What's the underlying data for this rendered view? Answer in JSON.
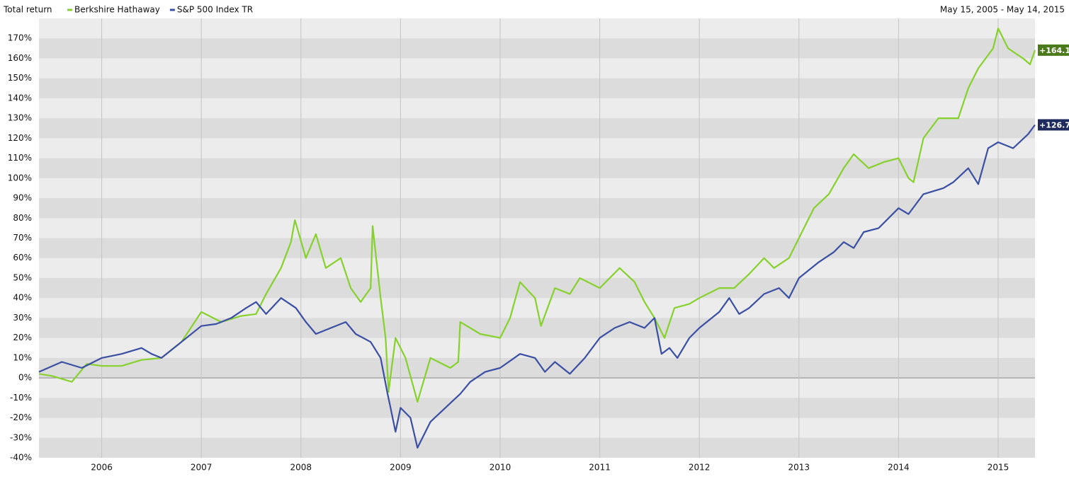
{
  "chart_data": {
    "type": "line",
    "title": "Total return",
    "subtitle": "May 15, 2005 - May 14, 2015",
    "xlim": [
      2005.37,
      2015.37
    ],
    "xticks": [
      2006,
      2007,
      2008,
      2009,
      2010,
      2011,
      2012,
      2013,
      2014,
      2015
    ],
    "ylim": [
      -40,
      180
    ],
    "yticks": [
      {
        "value": -40,
        "label": "-40%"
      },
      {
        "value": -30,
        "label": "-30%"
      },
      {
        "value": -20,
        "label": "-20%"
      },
      {
        "value": -10,
        "label": "-10%"
      },
      {
        "value": 0,
        "label": "0%"
      },
      {
        "value": 10,
        "label": "10%"
      },
      {
        "value": 20,
        "label": "20%"
      },
      {
        "value": 30,
        "label": "30%"
      },
      {
        "value": 40,
        "label": "40%"
      },
      {
        "value": 50,
        "label": "50%"
      },
      {
        "value": 60,
        "label": "60%"
      },
      {
        "value": 70,
        "label": "70%"
      },
      {
        "value": 80,
        "label": "80%"
      },
      {
        "value": 90,
        "label": "90%"
      },
      {
        "value": 100,
        "label": "100%"
      },
      {
        "value": 110,
        "label": "110%"
      },
      {
        "value": 120,
        "label": "120%"
      },
      {
        "value": 130,
        "label": "130%"
      },
      {
        "value": 140,
        "label": "140%"
      },
      {
        "value": 150,
        "label": "150%"
      },
      {
        "value": 160,
        "label": "160%"
      },
      {
        "value": 170,
        "label": "170%"
      }
    ],
    "grid": true,
    "series": [
      {
        "name": "Berkshire Hathaway",
        "color": "#86d12c",
        "label_color": "#4b7a1c",
        "end_label": "+164.1",
        "x": [
          2005.37,
          2005.5,
          2005.7,
          2005.85,
          2006.0,
          2006.2,
          2006.4,
          2006.6,
          2006.8,
          2007.0,
          2007.2,
          2007.4,
          2007.55,
          2007.65,
          2007.8,
          2007.9,
          2007.94,
          2008.05,
          2008.15,
          2008.25,
          2008.4,
          2008.5,
          2008.6,
          2008.7,
          2008.72,
          2008.8,
          2008.85,
          2008.88,
          2008.95,
          2009.05,
          2009.17,
          2009.3,
          2009.5,
          2009.58,
          2009.6,
          2009.8,
          2010.0,
          2010.1,
          2010.2,
          2010.35,
          2010.41,
          2010.55,
          2010.7,
          2010.8,
          2011.0,
          2011.2,
          2011.35,
          2011.45,
          2011.55,
          2011.65,
          2011.75,
          2011.9,
          2012.0,
          2012.2,
          2012.35,
          2012.5,
          2012.65,
          2012.75,
          2012.9,
          2013.0,
          2013.15,
          2013.3,
          2013.45,
          2013.55,
          2013.7,
          2013.85,
          2014.0,
          2014.1,
          2014.15,
          2014.25,
          2014.4,
          2014.6,
          2014.7,
          2014.8,
          2014.95,
          2015.0,
          2015.1,
          2015.25,
          2015.32,
          2015.37
        ],
        "values": [
          2,
          1,
          -2,
          7,
          6,
          6,
          9,
          10,
          18,
          33,
          28,
          31,
          32,
          42,
          55,
          68,
          79,
          60,
          72,
          55,
          60,
          45,
          38,
          45,
          76,
          40,
          20,
          -7,
          20,
          10,
          -12,
          10,
          5,
          8,
          28,
          22,
          20,
          30,
          48,
          40,
          26,
          45,
          42,
          50,
          45,
          55,
          48,
          38,
          30,
          20,
          35,
          37,
          40,
          45,
          45,
          52,
          60,
          55,
          60,
          70,
          85,
          92,
          105,
          112,
          105,
          108,
          110,
          100,
          98,
          120,
          130,
          130,
          145,
          155,
          165,
          175,
          165,
          160,
          157,
          164.1
        ]
      },
      {
        "name": "S&P 500 Index TR",
        "color": "#3a4fa3",
        "label_color": "#1e2b5c",
        "end_label": "+126.7",
        "x": [
          2005.37,
          2005.6,
          2005.8,
          2006.0,
          2006.2,
          2006.4,
          2006.5,
          2006.6,
          2006.8,
          2007.0,
          2007.15,
          2007.3,
          2007.45,
          2007.55,
          2007.65,
          2007.8,
          2007.95,
          2008.05,
          2008.15,
          2008.3,
          2008.45,
          2008.55,
          2008.7,
          2008.8,
          2008.87,
          2008.9,
          2008.95,
          2009.0,
          2009.1,
          2009.17,
          2009.3,
          2009.45,
          2009.6,
          2009.7,
          2009.85,
          2010.0,
          2010.2,
          2010.35,
          2010.45,
          2010.55,
          2010.7,
          2010.85,
          2011.0,
          2011.15,
          2011.3,
          2011.45,
          2011.55,
          2011.62,
          2011.7,
          2011.78,
          2011.9,
          2012.0,
          2012.2,
          2012.3,
          2012.4,
          2012.5,
          2012.65,
          2012.8,
          2012.9,
          2013.0,
          2013.2,
          2013.35,
          2013.45,
          2013.55,
          2013.65,
          2013.8,
          2014.0,
          2014.1,
          2014.25,
          2014.45,
          2014.55,
          2014.7,
          2014.8,
          2014.9,
          2015.0,
          2015.15,
          2015.3,
          2015.37
        ],
        "values": [
          3,
          8,
          5,
          10,
          12,
          15,
          12,
          10,
          18,
          26,
          27,
          30,
          35,
          38,
          32,
          40,
          35,
          28,
          22,
          25,
          28,
          22,
          18,
          10,
          -8,
          -15,
          -27,
          -15,
          -20,
          -35,
          -22,
          -15,
          -8,
          -2,
          3,
          5,
          12,
          10,
          3,
          8,
          2,
          10,
          20,
          25,
          28,
          25,
          30,
          12,
          15,
          10,
          20,
          25,
          33,
          40,
          32,
          35,
          42,
          45,
          40,
          50,
          58,
          63,
          68,
          65,
          73,
          75,
          85,
          82,
          92,
          95,
          98,
          105,
          97,
          115,
          118,
          115,
          122,
          126.7
        ]
      }
    ]
  }
}
